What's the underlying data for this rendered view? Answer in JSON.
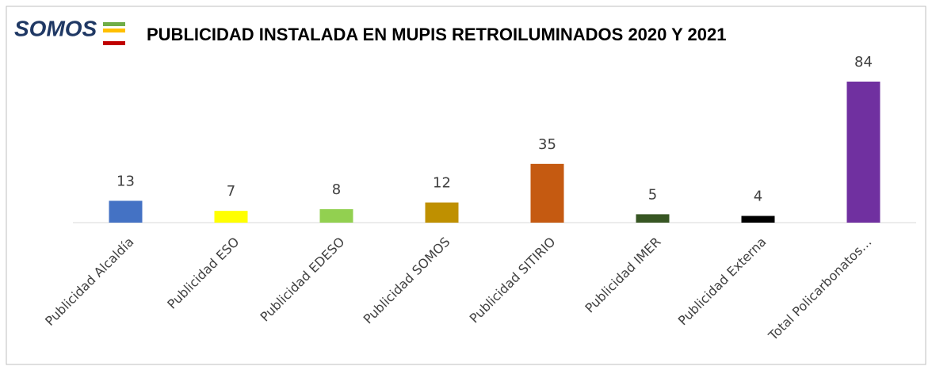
{
  "chart_data": {
    "type": "bar",
    "logo": "SOMOS",
    "title": "PUBLICIDAD INSTALADA EN MUPIS RETROILUMINADOS 2020 Y 2021",
    "categories": [
      "Publicidad Alcaldía",
      "Publicidad ESO",
      "Publicidad EDESO",
      "Publicidad SOMOS",
      "Publicidad SITIRIO",
      "Publicidad IMER",
      "Publicidad Externa",
      "Total Policarbonatos…"
    ],
    "values": [
      13,
      7,
      8,
      12,
      35,
      5,
      4,
      84
    ],
    "colors": [
      "#4472c4",
      "#ffff00",
      "#92d050",
      "#bf9000",
      "#c55a11",
      "#375623",
      "#000000",
      "#7030a0"
    ],
    "grid": false
  }
}
